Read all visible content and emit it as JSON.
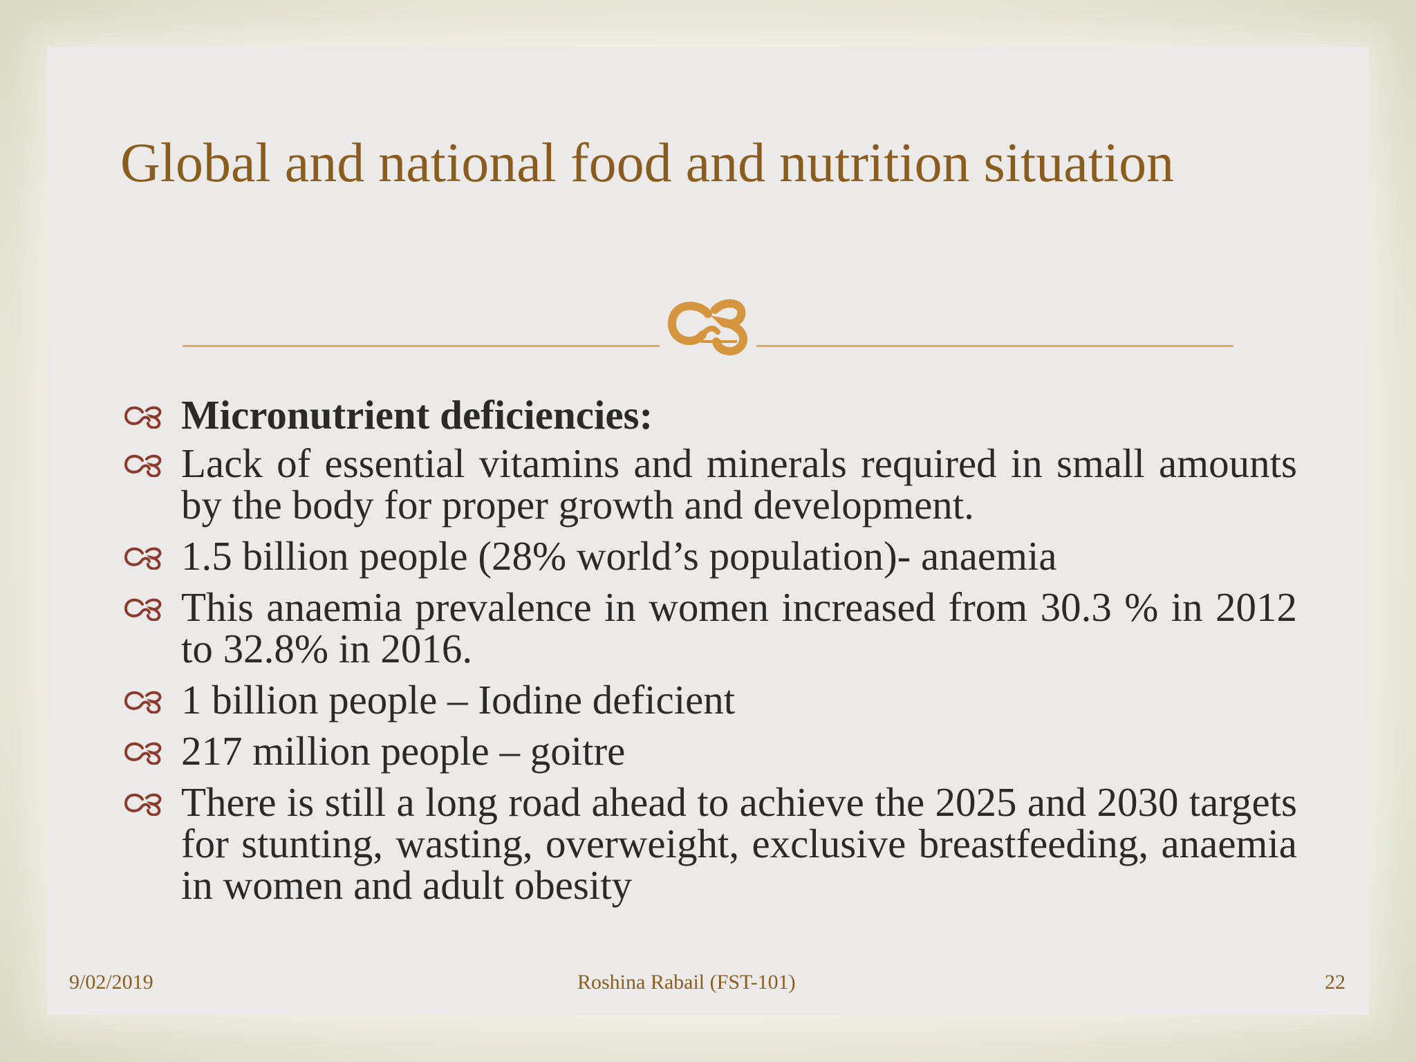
{
  "slide": {
    "title": "Global and national food and nutrition situation",
    "bullets": [
      "Micronutrient deficiencies:",
      "Lack of essential vitamins and minerals required in small amounts by the body for proper growth and development.",
      "1.5 billion people (28% world’s population)- anaemia",
      "This anaemia prevalence in women increased from 30.3 % in 2012 to 32.8% in 2016.",
      "1 billion people – Iodine deficient",
      "217 million people – goitre",
      "There is still a long road ahead to achieve the 2025 and 2030 targets for stunting, wasting, overweight, exclusive breastfeeding, anaemia in women and adult obesity"
    ]
  },
  "footer": {
    "date": "9/02/2019",
    "author": "Roshina Rabail (FST-101)",
    "page": "22"
  },
  "colors": {
    "title": "#8a5d1f",
    "divider": "#e0a85a",
    "flourish": "#d4953e",
    "bullet_marker": "#8b3a2e",
    "body_text": "#2a2a2a"
  },
  "icons": {
    "divider_ornament": "flourish-icon",
    "bullet": "scroll-bullet-icon"
  }
}
